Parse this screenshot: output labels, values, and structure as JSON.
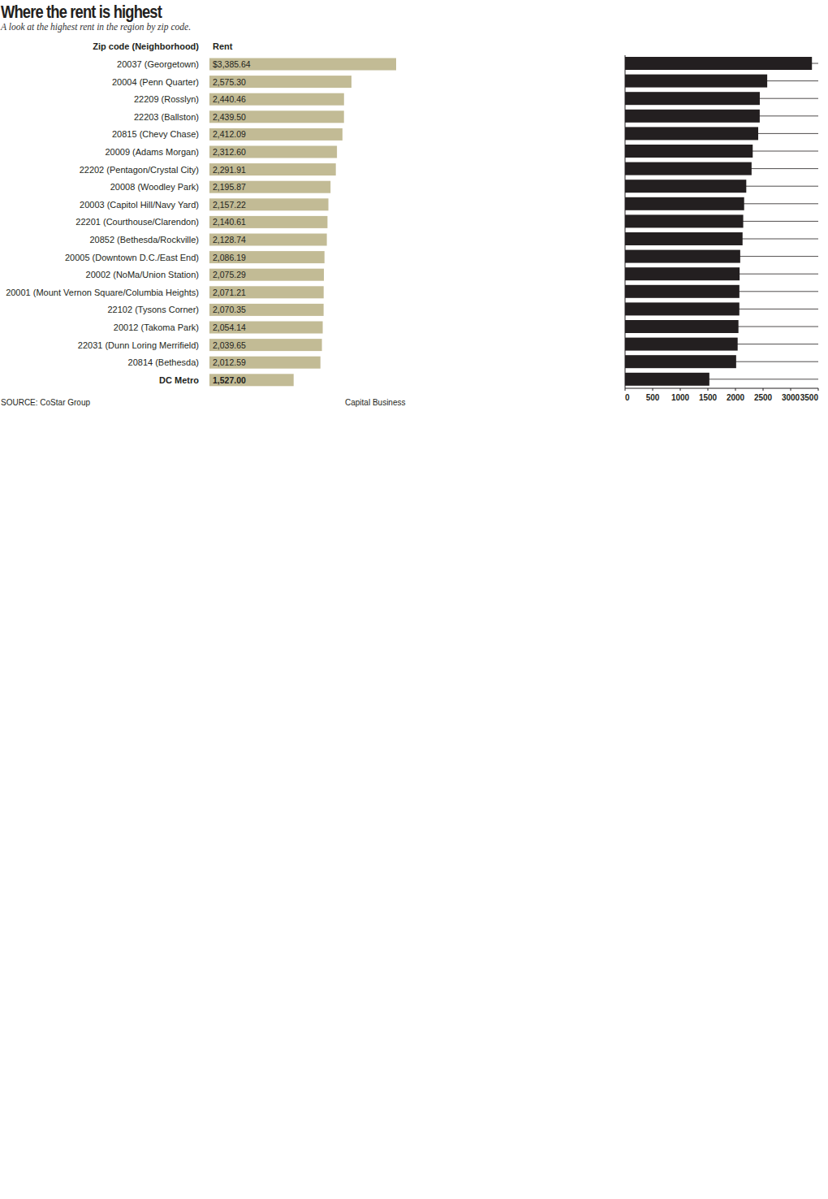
{
  "chart_data": [
    {
      "type": "bar",
      "title": "Where the rent is highest",
      "subtitle": "A look at the highest rent in the region by zip code.",
      "category_header": "Zip code (Neighborhood)",
      "value_header": "Rent",
      "source": "SOURCE: CoStar Group",
      "credit": "Capital Business",
      "categories": [
        "20037 (Georgetown)",
        "20004 (Penn Quarter)",
        "22209 (Rosslyn)",
        "22203 (Ballston)",
        "20815 (Chevy Chase)",
        "20009 (Adams Morgan)",
        "22202 (Pentagon/Crystal City)",
        "20008 (Woodley Park)",
        "20003 (Capitol Hill/Navy Yard)",
        "22201 (Courthouse/Clarendon)",
        "20852 (Bethesda/Rockville)",
        "20005 (Downtown D.C./East End)",
        "20002 (NoMa/Union Station)",
        "20001 (Mount Vernon Square/Columbia Heights)",
        "22102 (Tysons Corner)",
        "20012 (Takoma Park)",
        "22031 (Dunn Loring Merrifield)",
        "20814 (Bethesda)",
        "DC Metro"
      ],
      "values": [
        3385.64,
        2575.3,
        2440.46,
        2439.5,
        2412.09,
        2312.6,
        2291.91,
        2195.87,
        2157.22,
        2140.61,
        2128.74,
        2086.19,
        2075.29,
        2071.21,
        2070.35,
        2054.14,
        2039.65,
        2012.59,
        1527.0
      ],
      "value_labels": [
        "$3,385.64",
        "2,575.30",
        "2,440.46",
        "2,439.50",
        "2,412.09",
        "2,312.60",
        "2,291.91",
        "2,195.87",
        "2,157.22",
        "2,140.61",
        "2,128.74",
        "2,086.19",
        "2,075.29",
        "2,071.21",
        "2,070.35",
        "2,054.14",
        "2,039.65",
        "2,012.59",
        "1,527.00"
      ],
      "color": "#c2bb95",
      "orientation": "horizontal",
      "data_labels": true,
      "tick_labels": false
    },
    {
      "type": "bar",
      "categories": [
        null,
        null,
        null,
        null,
        null,
        null,
        null,
        null,
        null,
        null,
        null,
        null,
        null,
        null,
        null,
        null,
        null,
        null,
        null
      ],
      "values": [
        3385.64,
        2575.3,
        2440.46,
        2439.5,
        2412.09,
        2312.6,
        2291.91,
        2195.87,
        2157.22,
        2140.61,
        2128.74,
        2086.19,
        2075.29,
        2071.21,
        2070.35,
        2054.14,
        2039.65,
        2012.59,
        1527.0
      ],
      "color": "#231f20",
      "orientation": "horizontal",
      "xlim": [
        0,
        3500
      ],
      "xticks": [
        0,
        500,
        1000,
        1500,
        2000,
        2500,
        3000,
        3500
      ],
      "grid": true,
      "data_labels": false,
      "tick_labels": "x"
    }
  ]
}
